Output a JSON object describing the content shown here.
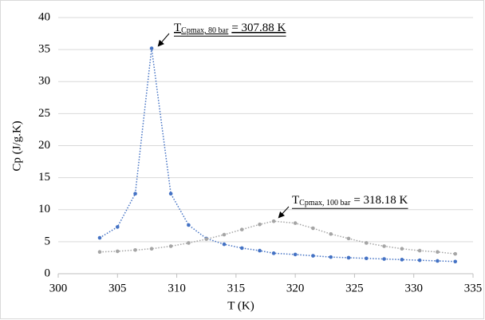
{
  "chart_data": {
    "type": "line",
    "xlabel": "T (K)",
    "ylabel": "Cp (J/g.K)",
    "x": [
      303.5,
      305,
      306.5,
      307.88,
      309.5,
      311,
      312.5,
      314,
      315.5,
      317,
      318.18,
      320,
      321.5,
      323,
      324.5,
      326,
      327.5,
      329,
      330.5,
      332,
      333.5
    ],
    "series": [
      {
        "color": "#4472c4",
        "values": [
          5.6,
          7.3,
          12.5,
          35.2,
          12.5,
          7.6,
          5.5,
          4.6,
          4.0,
          3.6,
          3.2,
          3.0,
          2.8,
          2.6,
          2.5,
          2.4,
          2.3,
          2.2,
          2.1,
          2.0,
          1.9
        ]
      },
      {
        "color": "#a5a5a5",
        "values": [
          3.4,
          3.5,
          3.7,
          3.9,
          4.3,
          4.8,
          5.4,
          6.1,
          6.9,
          7.7,
          8.2,
          7.9,
          7.1,
          6.2,
          5.5,
          4.8,
          4.3,
          3.9,
          3.6,
          3.4,
          3.1
        ]
      }
    ],
    "xlim": [
      300,
      335
    ],
    "xticks": [
      300,
      305,
      310,
      315,
      320,
      325,
      330,
      335
    ],
    "ylim": [
      0,
      40
    ],
    "yticks": [
      0,
      5,
      10,
      15,
      20,
      25,
      30,
      35,
      40
    ],
    "grid": true,
    "annotations": [
      {
        "main": "T",
        "sub": "Cpmax, 80 bar",
        "value": "= 307.88 K"
      },
      {
        "main": "T",
        "sub": "Cpmax, 100 bar",
        "value": "= 318.18 K"
      }
    ]
  }
}
